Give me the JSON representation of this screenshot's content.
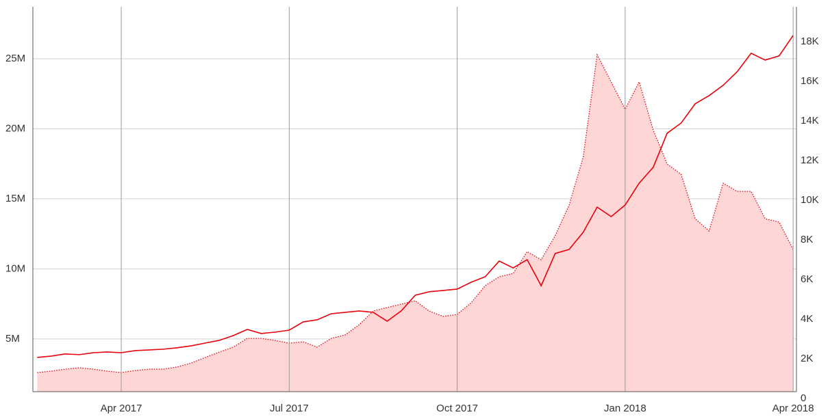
{
  "chart_data": {
    "type": "line-area",
    "categories": [
      null,
      null,
      null,
      null,
      null,
      null,
      "Apr 2017",
      null,
      null,
      null,
      null,
      null,
      null,
      null,
      null,
      null,
      null,
      null,
      "Jul 2017",
      null,
      null,
      null,
      null,
      null,
      null,
      null,
      null,
      null,
      null,
      null,
      "Oct 2017",
      null,
      null,
      null,
      null,
      null,
      null,
      null,
      null,
      null,
      null,
      null,
      "Jan 2018",
      null,
      null,
      null,
      null,
      null,
      null,
      null,
      null,
      null,
      null,
      null,
      "Apr 2018"
    ],
    "series": [
      {
        "kind": "line",
        "axis": "y",
        "color": "#e8000b",
        "values": [
          3680000,
          3780000,
          3930000,
          3880000,
          4020000,
          4070000,
          4020000,
          4170000,
          4220000,
          4270000,
          4370000,
          4510000,
          4710000,
          4900000,
          5240000,
          5680000,
          5390000,
          5490000,
          5630000,
          6220000,
          6370000,
          6800000,
          6900000,
          7000000,
          6900000,
          6270000,
          7000000,
          8120000,
          8370000,
          8460000,
          8560000,
          9050000,
          9440000,
          10560000,
          10070000,
          10660000,
          8800000,
          11100000,
          11390000,
          12610000,
          14410000,
          13730000,
          14560000,
          16120000,
          17240000,
          19680000,
          20410000,
          21780000,
          22370000,
          23100000,
          24070000,
          25390000,
          24900000,
          25200000,
          26660000
        ]
      },
      {
        "kind": "area",
        "axis": "y2",
        "color": "#e8000b",
        "fill": "#ffd6d6",
        "values": [
          1310,
          1380,
          1480,
          1550,
          1480,
          1380,
          1310,
          1410,
          1480,
          1480,
          1590,
          1790,
          2070,
          2340,
          2590,
          3030,
          3030,
          2930,
          2790,
          2860,
          2590,
          3030,
          3210,
          3720,
          4410,
          4590,
          4760,
          4930,
          4410,
          4140,
          4240,
          4830,
          5690,
          6140,
          6310,
          7410,
          7000,
          8210,
          9760,
          12170,
          17340,
          15970,
          14590,
          15970,
          13550,
          11830,
          11310,
          9070,
          8450,
          10860,
          10450,
          10450,
          9070,
          8900,
          7520
        ]
      }
    ],
    "ylim": [
      1240000,
      28700000
    ],
    "yticks": [
      {
        "value": 5000000,
        "label": "5M"
      },
      {
        "value": 10000000,
        "label": "10M"
      },
      {
        "value": 15000000,
        "label": "15M"
      },
      {
        "value": 20000000,
        "label": "20M"
      },
      {
        "value": 25000000,
        "label": "25M"
      }
    ],
    "y2lim": [
      345,
      19760
    ],
    "y2ticks": [
      0,
      {
        "value": 2000,
        "label": "2K"
      },
      {
        "value": 4000,
        "label": "4K"
      },
      {
        "value": 6000,
        "label": "6K"
      },
      {
        "value": 8000,
        "label": "8K"
      },
      {
        "value": 10000,
        "label": "10K"
      },
      {
        "value": 12000,
        "label": "12K"
      },
      {
        "value": 14000,
        "label": "14K"
      },
      {
        "value": 16000,
        "label": "16K"
      },
      {
        "value": 18000,
        "label": "18K"
      }
    ],
    "grid": true
  }
}
